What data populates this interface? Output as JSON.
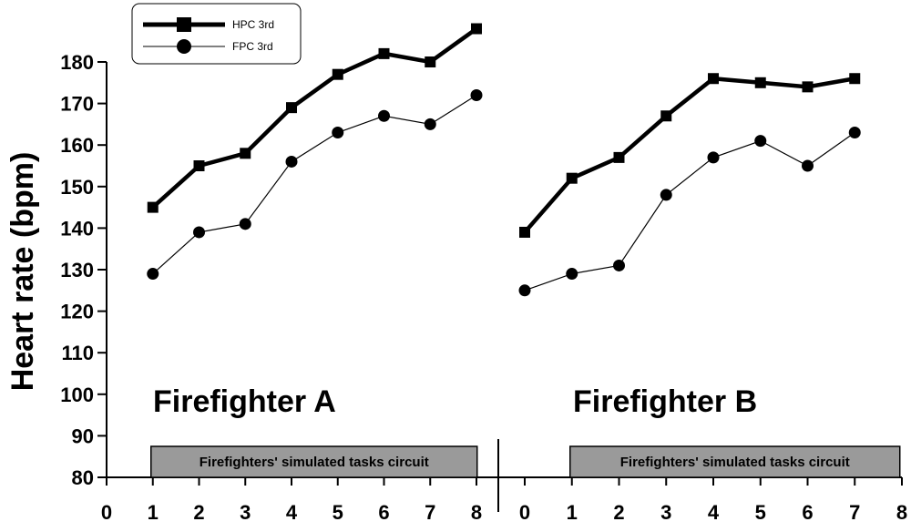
{
  "chart_data": {
    "type": "line",
    "ylabel": "Heart rate (bpm)",
    "ylim": [
      80,
      180
    ],
    "yticks": [
      80,
      90,
      100,
      110,
      120,
      130,
      140,
      150,
      160,
      170,
      180
    ],
    "legend": {
      "placement": "top-left",
      "entries": [
        {
          "name": "HPC 3rd",
          "marker": "square",
          "line": "thick"
        },
        {
          "name": "FPC 3rd",
          "marker": "circle",
          "line": "thin"
        }
      ]
    },
    "circuit_label": "Firefighters' simulated tasks circuit",
    "panels": [
      {
        "title": "Firefighter A",
        "xticks": [
          "0",
          "1",
          "2",
          "3",
          "4",
          "5",
          "6",
          "7",
          "8"
        ],
        "xlim": [
          0,
          8
        ],
        "series": [
          {
            "name": "HPC 3rd",
            "x": [
              1,
              2,
              3,
              4,
              5,
              6,
              7,
              8
            ],
            "values": [
              145,
              155,
              158,
              169,
              177,
              182,
              180,
              188
            ]
          },
          {
            "name": "FPC 3rd",
            "x": [
              1,
              2,
              3,
              4,
              5,
              6,
              7,
              8
            ],
            "values": [
              129,
              139,
              141,
              156,
              163,
              167,
              165,
              172
            ]
          }
        ]
      },
      {
        "title": "Firefighter B",
        "xticks": [
          "0",
          "1",
          "2",
          "3",
          "4",
          "5",
          "6",
          "7",
          "8"
        ],
        "xlim": [
          0,
          8
        ],
        "series": [
          {
            "name": "HPC 3rd",
            "x": [
              0,
              1,
              2,
              3,
              4,
              5,
              6,
              7
            ],
            "values": [
              139,
              152,
              157,
              167,
              176,
              175,
              174,
              176
            ]
          },
          {
            "name": "FPC 3rd",
            "x": [
              0,
              1,
              2,
              3,
              4,
              5,
              6,
              7
            ],
            "values": [
              125,
              129,
              131,
              148,
              157,
              161,
              155,
              163
            ]
          }
        ]
      }
    ]
  }
}
